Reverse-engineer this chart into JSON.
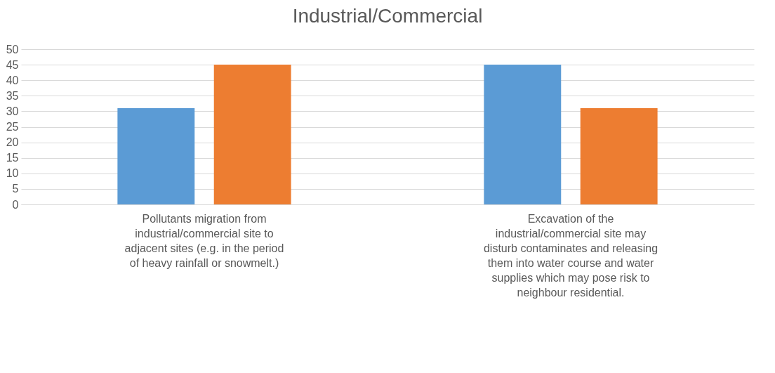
{
  "chart_data": {
    "type": "bar",
    "title": "Industrial/Commercial",
    "categories": [
      "Pollutants migration from industrial/commercial site to adjacent sites (e.g. in the period of heavy rainfall or snowmelt.)",
      "Excavation of the industrial/commercial site may disturb contaminates and releasing them into water course and water supplies which may pose risk to neighbour residential."
    ],
    "series": [
      {
        "color": "#5b9bd5",
        "values": [
          31,
          45
        ]
      },
      {
        "color": "#ed7d31",
        "values": [
          45,
          31
        ]
      }
    ],
    "ylim": [
      0,
      50
    ],
    "yticks": [
      0,
      5,
      10,
      15,
      20,
      25,
      30,
      35,
      40,
      45,
      50
    ],
    "grid": "y"
  }
}
